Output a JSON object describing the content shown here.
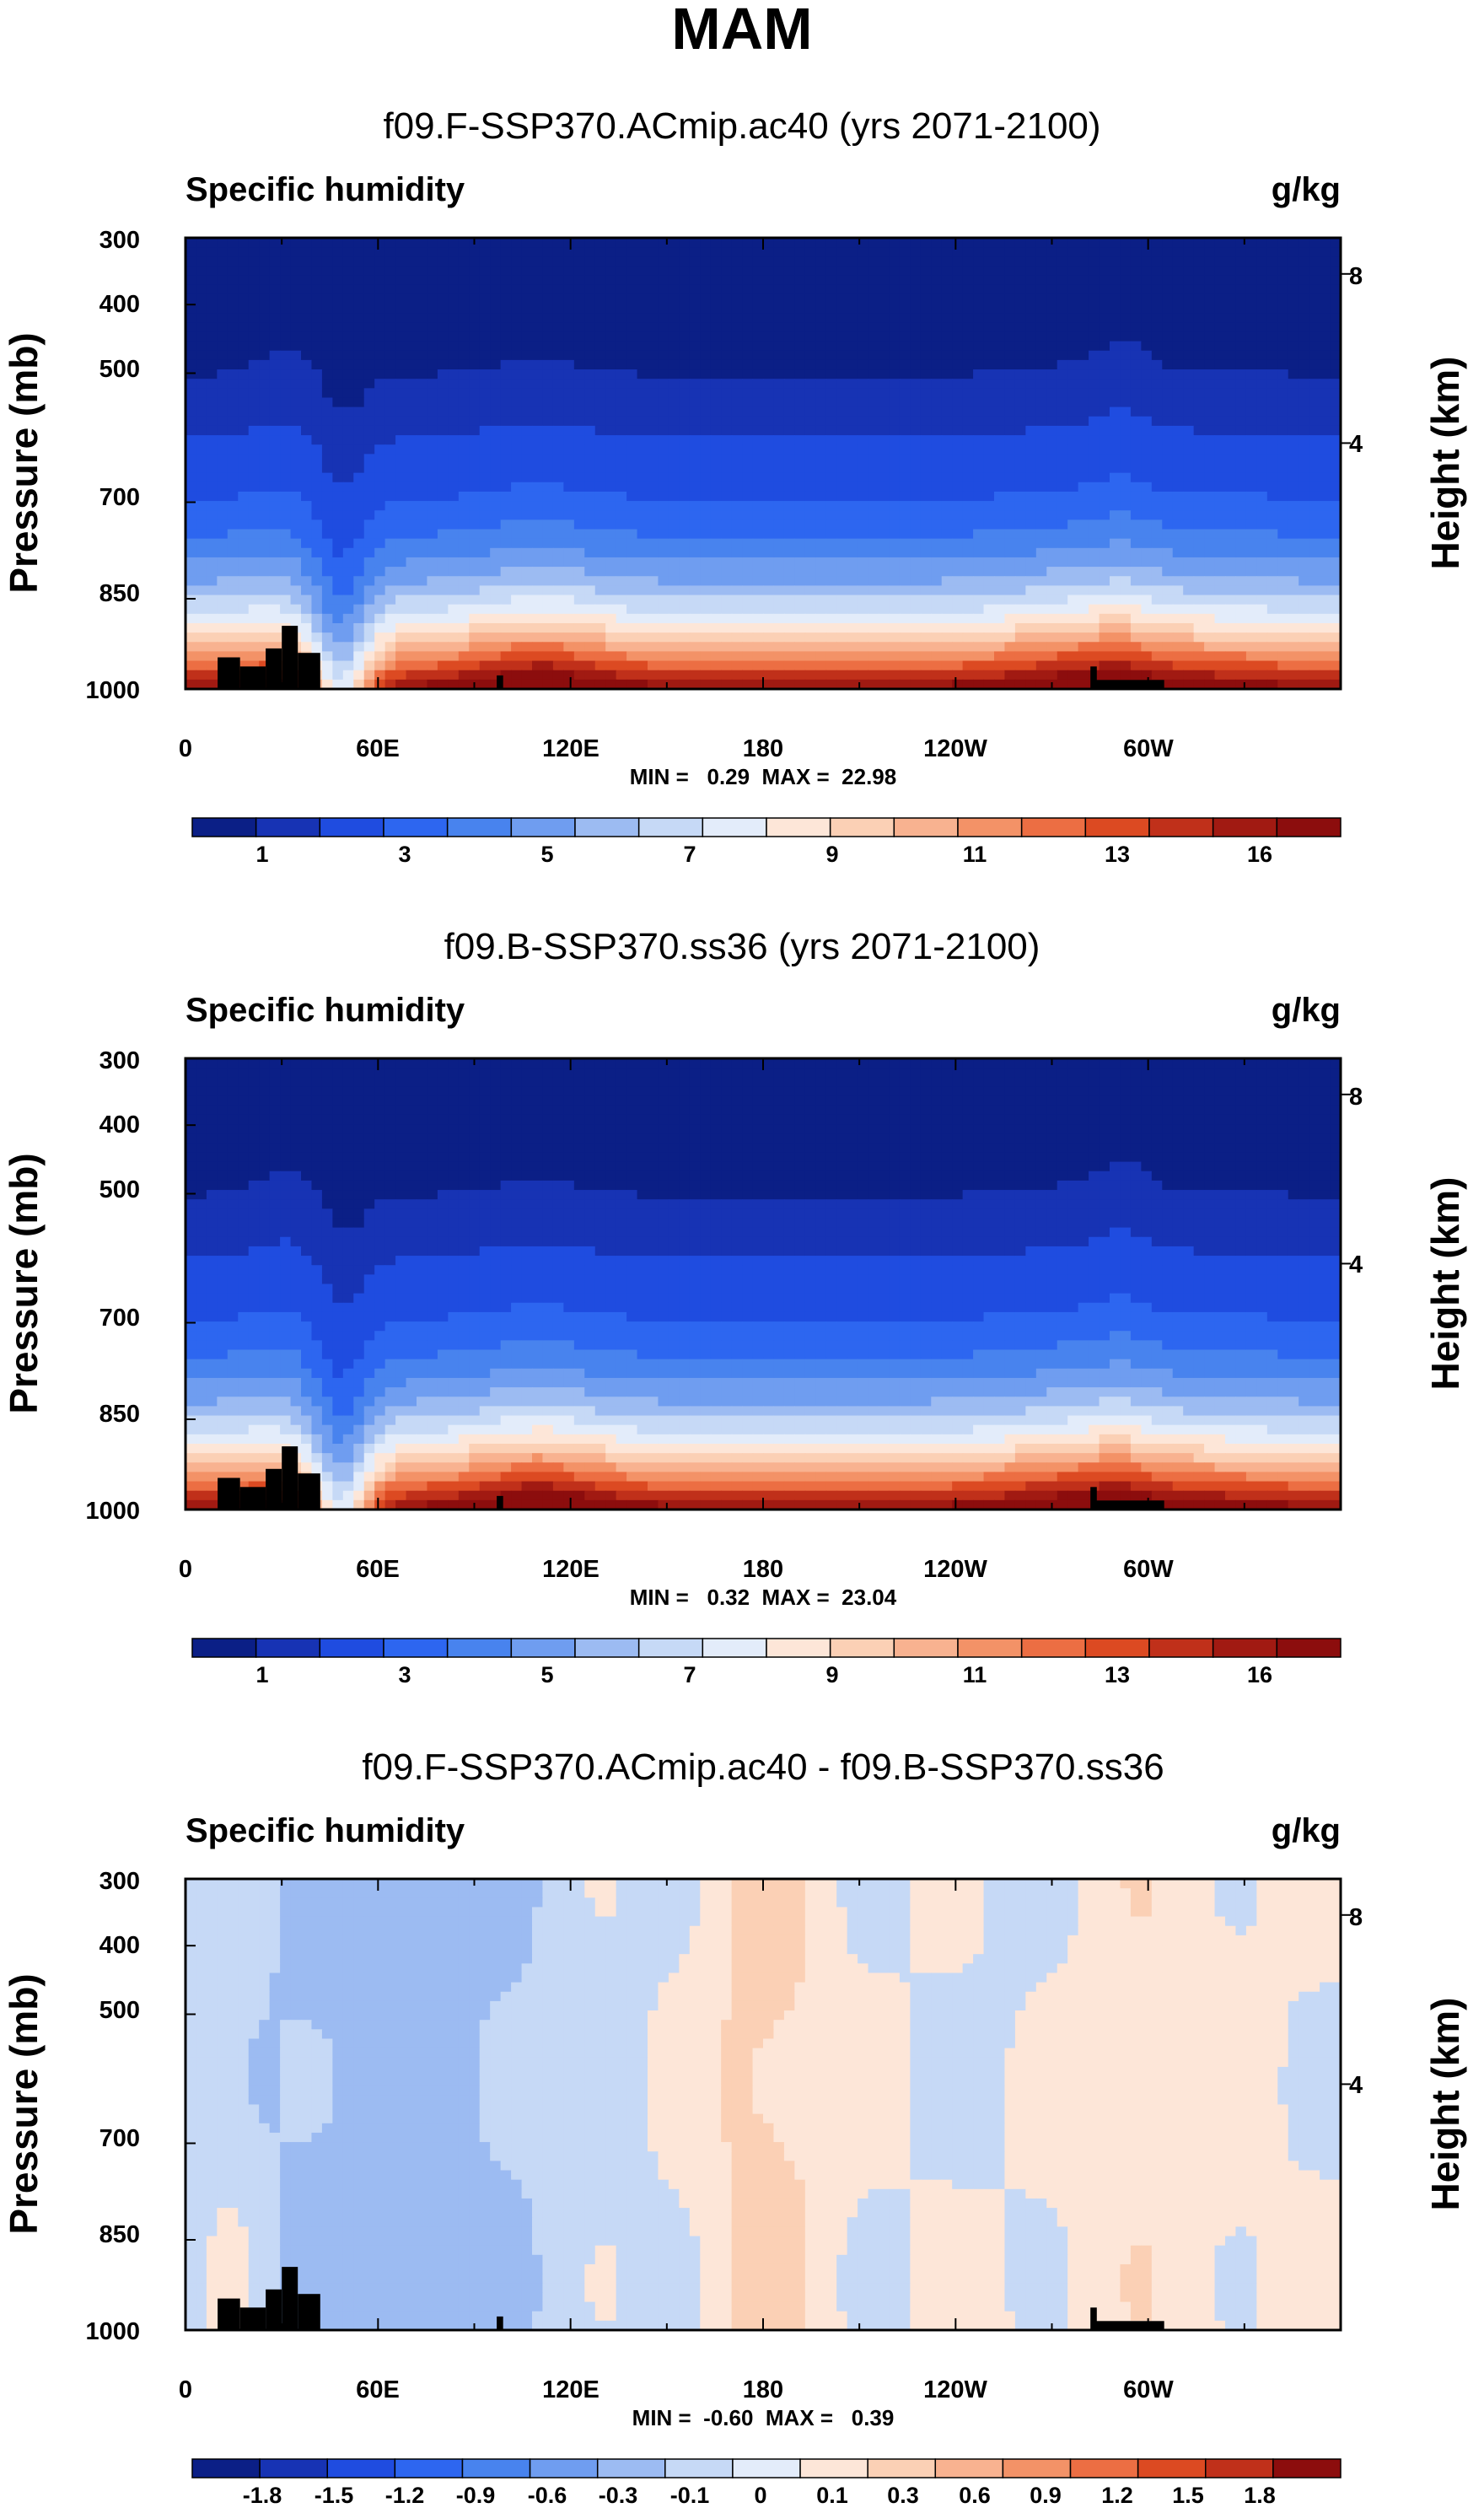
{
  "title": "MAM",
  "colors": {
    "seq": [
      "#0b1f86",
      "#1733b4",
      "#1f4ce0",
      "#2d66f0",
      "#4883ee",
      "#6f9df0",
      "#9cbbf2",
      "#c6d9f6",
      "#e3ecfa",
      "#fde6d8",
      "#fbd0b5",
      "#f8b290",
      "#f39267",
      "#ec6e43",
      "#dc4a22",
      "#c0301a",
      "#a11a12",
      "#8c0d0d"
    ],
    "diff": [
      "#0b1f86",
      "#1733b4",
      "#1f4ce0",
      "#2d66f0",
      "#4883ee",
      "#6f9df0",
      "#9cbbf2",
      "#c6d9f6",
      "#e3ecfa",
      "#fde6d8",
      "#fbd0b5",
      "#f8b290",
      "#f39267",
      "#ec6e43",
      "#dc4a22",
      "#c0301a",
      "#8c0d0d"
    ],
    "terrain": "#000000"
  },
  "chart_data": [
    {
      "type": "heatmap",
      "title": "f09.F-SSP370.ACmip.ac40 (yrs 2071-2100)",
      "left_label": "Specific humidity",
      "right_label": "g/kg",
      "xlabel": "",
      "ylabel": "Pressure (mb)",
      "y2label": "Height (km)",
      "x_ticks": [
        "0",
        "60E",
        "120E",
        "180",
        "120W",
        "60W"
      ],
      "y_ticks": [
        "300",
        "400",
        "500",
        "700",
        "850",
        "1000"
      ],
      "y2_ticks": [
        "8",
        "4"
      ],
      "xlim": [
        0,
        360
      ],
      "ylim": [
        1000,
        300
      ],
      "min_max_text": "MIN =   0.29  MAX =  22.98",
      "colorbar_labels": [
        "1",
        "3",
        "5",
        "7",
        "9",
        "11",
        "13",
        "16"
      ],
      "colorbar_bins": 18,
      "kind": "seq",
      "scale": 1.0
    },
    {
      "type": "heatmap",
      "title": "f09.B-SSP370.ss36 (yrs 2071-2100)",
      "left_label": "Specific humidity",
      "right_label": "g/kg",
      "xlabel": "",
      "ylabel": "Pressure (mb)",
      "y2label": "Height (km)",
      "x_ticks": [
        "0",
        "60E",
        "120E",
        "180",
        "120W",
        "60W"
      ],
      "y_ticks": [
        "300",
        "400",
        "500",
        "700",
        "850",
        "1000"
      ],
      "y2_ticks": [
        "8",
        "4"
      ],
      "xlim": [
        0,
        360
      ],
      "ylim": [
        1000,
        300
      ],
      "min_max_text": "MIN =   0.32  MAX =  23.04",
      "colorbar_labels": [
        "1",
        "3",
        "5",
        "7",
        "9",
        "11",
        "13",
        "16"
      ],
      "colorbar_bins": 18,
      "kind": "seq",
      "scale": 1.003
    },
    {
      "type": "heatmap",
      "title": "f09.F-SSP370.ACmip.ac40 - f09.B-SSP370.ss36",
      "left_label": "Specific humidity",
      "right_label": "g/kg",
      "xlabel": "",
      "ylabel": "Pressure (mb)",
      "y2label": "Height (km)",
      "x_ticks": [
        "0",
        "60E",
        "120E",
        "180",
        "120W",
        "60W"
      ],
      "y_ticks": [
        "300",
        "400",
        "500",
        "700",
        "850",
        "1000"
      ],
      "y2_ticks": [
        "8",
        "4"
      ],
      "xlim": [
        0,
        360
      ],
      "ylim": [
        1000,
        300
      ],
      "min_max_text": "MIN =  -0.60  MAX =   0.39",
      "colorbar_labels": [
        "-1.8",
        "-1.5",
        "-1.2",
        "-0.9",
        "-0.6",
        "-0.3",
        "-0.1",
        "0",
        "0.1",
        "0.3",
        "0.6",
        "0.9",
        "1.2",
        "1.5",
        "1.8"
      ],
      "colorbar_bins": 17,
      "kind": "diff",
      "scale": 1.0
    }
  ]
}
